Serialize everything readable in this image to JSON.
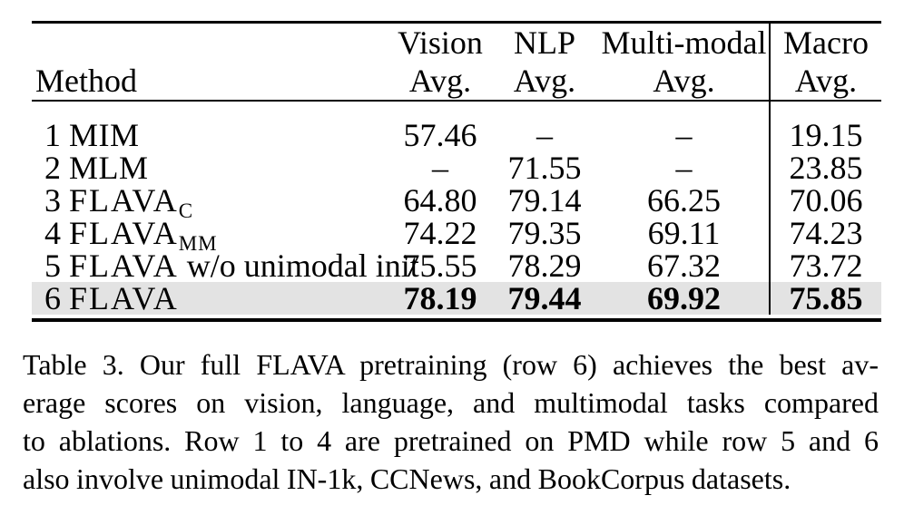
{
  "table": {
    "columns": [
      {
        "line1": "",
        "line2": "Method"
      },
      {
        "line1": "Vision",
        "line2": "Avg."
      },
      {
        "line1": "NLP",
        "line2": "Avg."
      },
      {
        "line1": "Multi-modal",
        "line2": "Avg."
      },
      {
        "line1": "Macro",
        "line2": "Avg."
      }
    ],
    "rows": [
      {
        "num": "1",
        "name": "MIM",
        "sub": "",
        "suffix": "",
        "vision": "57.46",
        "nlp": "–",
        "multimodal": "–",
        "macro": "19.15",
        "highlight": false
      },
      {
        "num": "2",
        "name": "MLM",
        "sub": "",
        "suffix": "",
        "vision": "–",
        "nlp": "71.55",
        "multimodal": "–",
        "macro": "23.85",
        "highlight": false
      },
      {
        "num": "3",
        "name": "FLAVA",
        "sub": "C",
        "suffix": "",
        "vision": "64.80",
        "nlp": "79.14",
        "multimodal": "66.25",
        "macro": "70.06",
        "highlight": false
      },
      {
        "num": "4",
        "name": "FLAVA",
        "sub": "MM",
        "suffix": "",
        "vision": "74.22",
        "nlp": "79.35",
        "multimodal": "69.11",
        "macro": "74.23",
        "highlight": false
      },
      {
        "num": "5",
        "name": "FLAVA",
        "sub": "",
        "suffix": " w/o unimodal init",
        "vision": "75.55",
        "nlp": "78.29",
        "multimodal": "67.32",
        "macro": "73.72",
        "highlight": false
      },
      {
        "num": "6",
        "name": "FLAVA",
        "sub": "",
        "suffix": "",
        "vision": "78.19",
        "nlp": "79.44",
        "multimodal": "69.92",
        "macro": "75.85",
        "highlight": true
      }
    ]
  },
  "caption": {
    "label": "Table 3.",
    "lines": [
      "Table 3. Our full FLAVA pretraining (row 6) achieves the best av-",
      "erage scores on vision, language, and multimodal tasks compared",
      "to ablations. Row 1 to 4 are pretrained on PMD while row 5 and 6",
      "also involve unimodal IN-1k, CCNews, and BookCorpus datasets."
    ]
  },
  "colors": {
    "highlight_row": "#e3e3e3",
    "rule": "#000000",
    "background": "#ffffff"
  }
}
